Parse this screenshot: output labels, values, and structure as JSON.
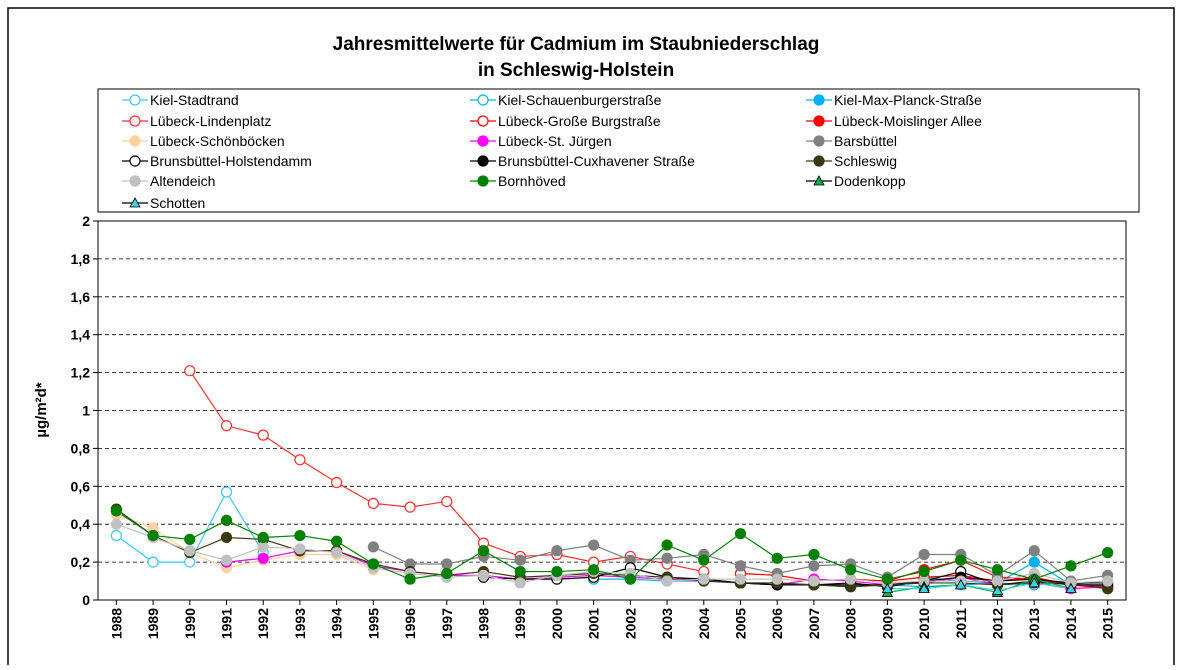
{
  "chart_data": {
    "type": "line",
    "title": [
      "Jahresmittelwerte für Cadmium im Staubniederschlag",
      "in Schleswig-Holstein"
    ],
    "y_label": "µg/m²d*",
    "categories": [
      "1988",
      "1989",
      "1990",
      "1991",
      "1992",
      "1993",
      "1994",
      "1995",
      "1996",
      "1997",
      "1998",
      "1999",
      "2000",
      "2001",
      "2002",
      "2003",
      "2004",
      "2005",
      "2006",
      "2007",
      "2008",
      "2009",
      "2010",
      "2011",
      "2012",
      "2013",
      "2014",
      "2015"
    ],
    "ylim": [
      0,
      2
    ],
    "yticks": [
      0,
      {
        "value": 0.2,
        "label": "0,2"
      },
      {
        "value": 0.4,
        "label": "0,4"
      },
      {
        "value": 0.6,
        "label": "0,6"
      },
      {
        "value": 0.8,
        "label": "0,8"
      },
      1,
      {
        "value": 1.2,
        "label": "1,2"
      },
      {
        "value": 1.4,
        "label": "1,4"
      },
      {
        "value": 1.6,
        "label": "1,6"
      },
      {
        "value": 1.8,
        "label": "1,8"
      },
      2
    ],
    "grid": true,
    "series": [
      {
        "name": "Kiel-Stadtrand",
        "color": "#3cc8f0",
        "marker": "circle",
        "filled": false,
        "values": [
          0.34,
          0.2,
          0.2,
          0.57,
          0.25,
          null,
          null,
          null,
          null,
          null,
          null,
          null,
          null,
          null,
          null,
          null,
          null,
          null,
          null,
          null,
          null,
          null,
          null,
          null,
          null,
          null,
          null,
          null
        ]
      },
      {
        "name": "Kiel-Schauenburgerstraße",
        "color": "#00b8d8",
        "marker": "circle",
        "filled": false,
        "values": [
          null,
          null,
          null,
          null,
          null,
          null,
          null,
          null,
          null,
          null,
          null,
          null,
          null,
          0.11,
          0.11,
          0.1,
          0.1,
          0.09,
          0.09,
          0.08,
          0.07,
          0.08,
          0.07,
          0.08,
          0.09,
          0.08,
          0.09,
          0.07
        ]
      },
      {
        "name": "Kiel-Max-Planck-Straße",
        "color": "#00b0f0",
        "marker": "circle",
        "filled": true,
        "values": [
          null,
          null,
          null,
          null,
          null,
          null,
          null,
          null,
          null,
          null,
          null,
          null,
          null,
          null,
          null,
          null,
          null,
          null,
          null,
          null,
          null,
          null,
          0.12,
          0.1,
          0.09,
          0.2,
          0.08,
          0.07
        ]
      },
      {
        "name": "Lübeck-Lindenplatz",
        "color": "#ff3030",
        "marker": "circle",
        "filled": false,
        "values": [
          null,
          null,
          1.21,
          0.92,
          0.87,
          0.74,
          0.62,
          0.51,
          0.49,
          0.52,
          0.3,
          0.23,
          0.24,
          0.2,
          0.23,
          0.19,
          0.15,
          null,
          null,
          null,
          null,
          null,
          null,
          null,
          null,
          null,
          null,
          null
        ]
      },
      {
        "name": "Lübeck-Große Burgstraße",
        "color": "#ff0000",
        "marker": "circle",
        "filled": false,
        "values": [
          null,
          null,
          null,
          null,
          null,
          null,
          null,
          null,
          null,
          null,
          null,
          null,
          null,
          null,
          null,
          null,
          null,
          0.14,
          0.13,
          0.1,
          0.11,
          0.1,
          0.12,
          0.13,
          0.1,
          0.12,
          0.08,
          0.07
        ]
      },
      {
        "name": "Lübeck-Moislinger Allee",
        "color": "#ff0000",
        "marker": "circle",
        "filled": true,
        "values": [
          null,
          null,
          null,
          null,
          null,
          null,
          null,
          null,
          null,
          null,
          null,
          null,
          null,
          null,
          null,
          null,
          null,
          null,
          null,
          null,
          null,
          0.1,
          0.16,
          0.21,
          0.12,
          0.11,
          0.08,
          0.06
        ]
      },
      {
        "name": "Lübeck-Schönböcken",
        "color": "#ffd0a0",
        "marker": "circle",
        "filled": true,
        "values": [
          0.45,
          0.38,
          0.25,
          0.17,
          0.21,
          0.24,
          0.24,
          0.16,
          null,
          null,
          null,
          null,
          null,
          null,
          null,
          null,
          null,
          null,
          null,
          null,
          null,
          null,
          null,
          null,
          null,
          null,
          null,
          null
        ]
      },
      {
        "name": "Lübeck-St. Jürgen",
        "color": "#ff00ff",
        "marker": "circle",
        "filled": true,
        "values": [
          null,
          null,
          null,
          0.2,
          0.22,
          0.26,
          0.26,
          0.18,
          0.15,
          0.13,
          0.13,
          0.11,
          0.12,
          0.13,
          0.12,
          0.11,
          0.1,
          0.09,
          0.08,
          0.11,
          0.1,
          0.08,
          0.09,
          0.12,
          0.08,
          0.09,
          0.06,
          0.07
        ]
      },
      {
        "name": "Barsbüttel",
        "color": "#808080",
        "marker": "circle",
        "filled": true,
        "values": [
          null,
          null,
          null,
          null,
          null,
          null,
          null,
          0.28,
          0.19,
          0.19,
          0.23,
          0.21,
          0.26,
          0.29,
          0.21,
          0.22,
          0.24,
          0.18,
          0.14,
          0.18,
          0.19,
          0.12,
          0.24,
          0.24,
          0.13,
          0.26,
          0.1,
          0.13
        ]
      },
      {
        "name": "Brunsbüttel-Holstendamm",
        "color": "#000000",
        "marker": "circle",
        "filled": false,
        "values": [
          null,
          null,
          null,
          null,
          null,
          null,
          null,
          null,
          null,
          null,
          0.12,
          0.11,
          0.11,
          0.12,
          0.17,
          0.12,
          0.11,
          0.09,
          0.08,
          0.08,
          0.09,
          0.07,
          0.1,
          0.15,
          0.08,
          0.1,
          0.08,
          0.08
        ]
      },
      {
        "name": "Brunsbüttel-Cuxhavener Straße",
        "color": "#000000",
        "marker": "circle",
        "filled": true,
        "values": [
          null,
          null,
          null,
          null,
          null,
          null,
          null,
          null,
          null,
          null,
          null,
          null,
          null,
          null,
          null,
          null,
          0.11,
          0.09,
          0.08,
          0.08,
          0.08,
          0.08,
          0.1,
          0.12,
          0.1,
          0.11,
          0.09,
          0.09
        ]
      },
      {
        "name": "Schleswig",
        "color": "#3a3a10",
        "marker": "circle",
        "filled": true,
        "values": [
          0.48,
          0.34,
          0.25,
          0.33,
          0.32,
          0.26,
          0.26,
          0.19,
          0.15,
          0.13,
          0.15,
          0.12,
          0.13,
          0.14,
          0.13,
          0.12,
          0.1,
          0.09,
          0.09,
          0.08,
          0.07,
          0.08,
          0.09,
          0.09,
          0.08,
          0.09,
          0.09,
          0.06
        ]
      },
      {
        "name": "Altendeich",
        "color": "#c0c0c0",
        "marker": "circle",
        "filled": true,
        "values": [
          0.4,
          0.33,
          0.26,
          0.21,
          0.28,
          0.27,
          0.25,
          0.17,
          0.14,
          0.12,
          0.13,
          0.09,
          0.13,
          0.15,
          0.14,
          0.1,
          0.11,
          0.11,
          0.11,
          0.1,
          0.11,
          0.09,
          0.1,
          0.1,
          0.1,
          0.14,
          0.09,
          0.1
        ]
      },
      {
        "name": "Bornhöved",
        "color": "#008000",
        "marker": "circle",
        "filled": true,
        "values": [
          0.47,
          0.34,
          0.32,
          0.42,
          0.33,
          0.34,
          0.31,
          0.19,
          0.11,
          0.14,
          0.26,
          0.15,
          0.15,
          0.16,
          0.11,
          0.29,
          0.21,
          0.35,
          0.22,
          0.24,
          0.16,
          0.11,
          0.15,
          0.21,
          0.16,
          0.11,
          0.18,
          0.25
        ]
      },
      {
        "name": "Dodenkopp",
        "color": "#00b050",
        "marker": "triangle",
        "filled": true,
        "values": [
          null,
          null,
          null,
          null,
          null,
          null,
          null,
          null,
          null,
          null,
          null,
          null,
          null,
          null,
          null,
          null,
          null,
          null,
          null,
          null,
          null,
          0.04,
          0.07,
          0.08,
          0.04,
          0.11,
          0.06,
          null
        ]
      },
      {
        "name": "Schotten",
        "color": "#40d0e0",
        "marker": "triangle",
        "filled": true,
        "values": [
          null,
          null,
          null,
          null,
          null,
          null,
          null,
          null,
          null,
          null,
          null,
          null,
          null,
          null,
          null,
          null,
          null,
          null,
          null,
          null,
          null,
          0.06,
          0.06,
          0.08,
          0.05,
          0.09,
          0.06,
          null
        ]
      }
    ]
  }
}
